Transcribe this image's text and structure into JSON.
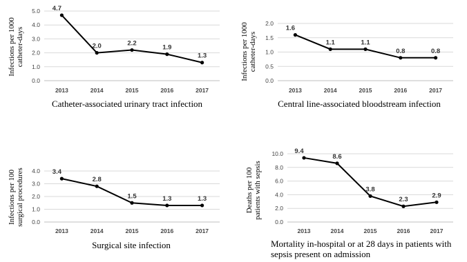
{
  "chart_data": [
    {
      "type": "line",
      "categories": [
        "2013",
        "2014",
        "2015",
        "2016",
        "2017"
      ],
      "values": [
        4.7,
        2.0,
        2.2,
        1.9,
        1.3
      ],
      "data_labels": [
        "4.7",
        "2.0",
        "2.2",
        "1.9",
        "1.3"
      ],
      "ylim": [
        0,
        5
      ],
      "yticks": [
        "0.0",
        "1.0",
        "2.0",
        "3.0",
        "4.0",
        "5.0"
      ],
      "ylabel_lines": [
        "Infections per 1000",
        "catheter-days"
      ],
      "title_lines": [
        "Catheter-associated urinary tract infection"
      ],
      "grid": true
    },
    {
      "type": "line",
      "categories": [
        "2013",
        "2014",
        "2015",
        "2016",
        "2017"
      ],
      "values": [
        1.6,
        1.1,
        1.1,
        0.8,
        0.8
      ],
      "data_labels": [
        "1.6",
        "1.1",
        "1.1",
        "0.8",
        "0.8"
      ],
      "ylim": [
        0,
        2
      ],
      "yticks": [
        "0.0",
        "0.5",
        "1.0",
        "1.5",
        "2.0"
      ],
      "ylabel_lines": [
        "Infections per 1000",
        "catheter-days"
      ],
      "title_lines": [
        "Central line-associated bloodstream infection"
      ],
      "grid": true
    },
    {
      "type": "line",
      "categories": [
        "2013",
        "2014",
        "2015",
        "2016",
        "2017"
      ],
      "values": [
        3.4,
        2.8,
        1.5,
        1.3,
        1.3
      ],
      "data_labels": [
        "3.4",
        "2.8",
        "1.5",
        "1.3",
        "1.3"
      ],
      "ylim": [
        0,
        4
      ],
      "yticks": [
        "0.0",
        "1.0",
        "2.0",
        "3.0",
        "4.0"
      ],
      "ylabel_lines": [
        "Infections per 100",
        "surgical procedures"
      ],
      "title_lines": [
        "Surgical site infection"
      ],
      "grid": true
    },
    {
      "type": "line",
      "categories": [
        "2013",
        "2014",
        "2015",
        "2016",
        "2017"
      ],
      "values": [
        9.4,
        8.6,
        3.8,
        2.3,
        2.9
      ],
      "data_labels": [
        "9.4",
        "8.6",
        "3.8",
        "2.3",
        "2.9"
      ],
      "ylim": [
        0,
        10
      ],
      "yticks": [
        "0.0",
        "2.0",
        "4.0",
        "6.0",
        "8.0",
        "10.0"
      ],
      "ylabel_lines": [
        "Deaths per 100",
        "patients with sepsis"
      ],
      "title_lines": [
        "Mortality in-hospital or at 28 days in patients with",
        "sepsis present on admission"
      ],
      "grid": true
    }
  ]
}
